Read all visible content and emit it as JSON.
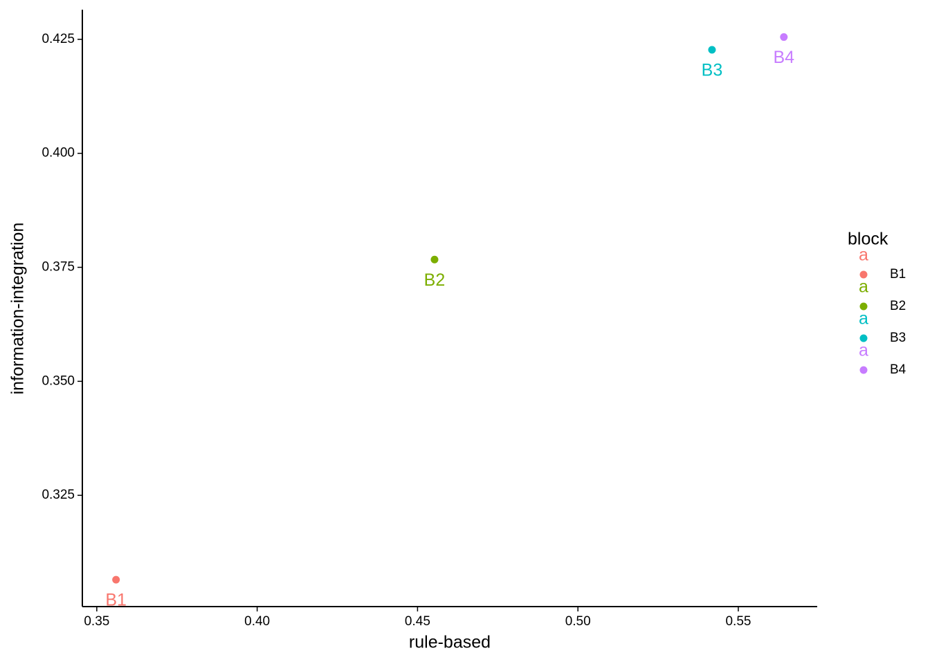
{
  "chart_data": {
    "type": "scatter",
    "x_label": "rule-based",
    "y_label": "information-integration",
    "legend_title": "block",
    "legend_key_glyph": "a",
    "legend_position": "right",
    "grid": false,
    "xlim": [
      0.3455,
      0.5746
    ],
    "ylim": [
      0.3006,
      0.4315
    ],
    "xticks": [
      0.35,
      {
        "value": 0.4,
        "label": "0.40"
      },
      0.45,
      {
        "value": 0.5,
        "label": "0.50"
      },
      0.55
    ],
    "yticks": [
      0.325,
      {
        "value": 0.35,
        "label": "0.350"
      },
      0.375,
      {
        "value": 0.4,
        "label": "0.400"
      },
      0.425
    ],
    "series": [
      {
        "name": "B1",
        "color": "#F8766D",
        "x": [
          0.356
        ],
        "values": [
          0.3065
        ]
      },
      {
        "name": "B2",
        "color": "#7CAE00",
        "x": [
          0.4553
        ],
        "values": [
          0.3767
        ]
      },
      {
        "name": "B3",
        "color": "#00BFC4",
        "x": [
          0.5418
        ],
        "values": [
          0.4227
        ]
      },
      {
        "name": "B4",
        "color": "#C77CFF",
        "x": [
          0.5642
        ],
        "values": [
          0.4255
        ]
      }
    ]
  }
}
